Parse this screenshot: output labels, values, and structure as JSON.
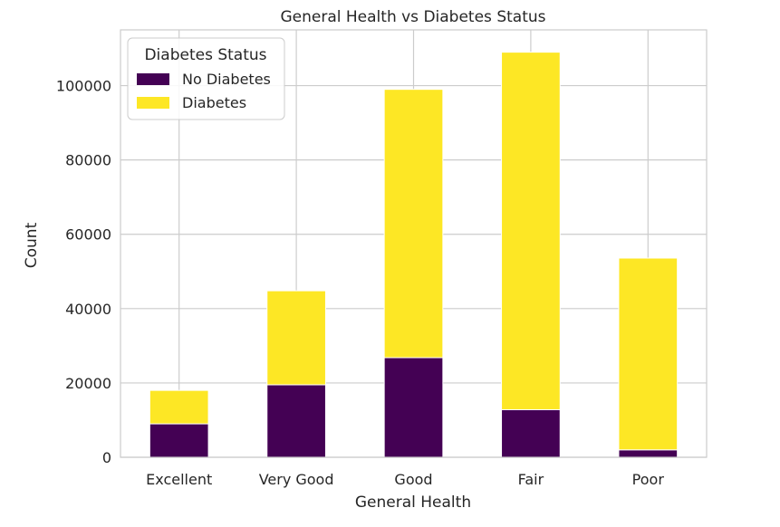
{
  "chart_data": {
    "type": "bar",
    "stacked": true,
    "title": "General Health vs Diabetes Status",
    "xlabel": "General Health",
    "ylabel": "Count",
    "categories": [
      "Excellent",
      "Very Good",
      "Good",
      "Fair",
      "Poor"
    ],
    "series": [
      {
        "name": "No Diabetes",
        "color": "#440154",
        "values": [
          9000,
          19500,
          26800,
          12800,
          2000
        ]
      },
      {
        "name": "Diabetes",
        "color": "#fde725",
        "values": [
          9000,
          25300,
          72200,
          96200,
          51600
        ]
      }
    ],
    "ylim": [
      0,
      115000
    ],
    "yticks": [
      0,
      20000,
      40000,
      60000,
      80000,
      100000
    ],
    "yticklabels": [
      "0",
      "20000",
      "40000",
      "60000",
      "80000",
      "100000"
    ],
    "grid": true,
    "legend": {
      "title": "Diabetes Status",
      "position": "top-left"
    }
  }
}
